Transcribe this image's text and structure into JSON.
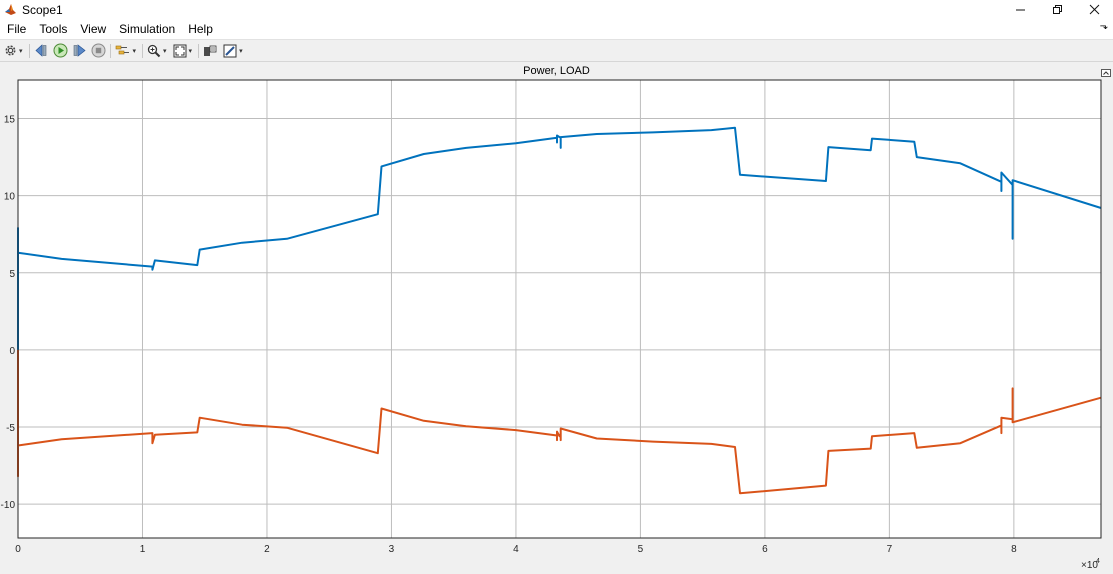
{
  "window": {
    "title": "Scope1",
    "icon": "matlab-icon",
    "controls": [
      "minimize-icon",
      "restore-icon",
      "close-icon"
    ]
  },
  "menu": {
    "items": [
      {
        "label": "File"
      },
      {
        "label": "Tools"
      },
      {
        "label": "View"
      },
      {
        "label": "Simulation"
      },
      {
        "label": "Help"
      }
    ],
    "collapse_icon": "chevron-icon"
  },
  "toolbar": {
    "icons": [
      "settings-icon",
      "step-back-icon",
      "run-icon",
      "step-forward-icon",
      "stop-icon",
      "highlight-icon",
      "zoom-icon",
      "autoscale-icon",
      "cursor-measure-icon",
      "style-icon"
    ]
  },
  "plot": {
    "title": "Power, LOAD",
    "x_exponent": "×10",
    "x_exponent_power": "4"
  },
  "colors": {
    "series1": "#0072BD",
    "series2": "#D95319",
    "grid": "#d9d9d9",
    "axes_bg": "#ffffff"
  },
  "chart_data": {
    "type": "line",
    "title": "Power, LOAD",
    "xlabel": "",
    "ylabel": "",
    "xlim": [
      0,
      8.7
    ],
    "ylim": [
      -12.2,
      17.5
    ],
    "x_scale_note": "×10^4",
    "x_ticks": [
      0,
      1,
      2,
      3,
      4,
      5,
      6,
      7,
      8
    ],
    "x_tick_labels": [
      "0",
      "1",
      "2",
      "3",
      "4",
      "5",
      "6",
      "7",
      "8"
    ],
    "y_ticks": [
      15,
      10,
      5,
      0,
      -5,
      -10
    ],
    "y_tick_labels": [
      "15",
      "10",
      "5",
      "0",
      "-5",
      "-10"
    ],
    "grid": true,
    "series": [
      {
        "x": [
          0,
          0,
          0,
          0.35,
          1.08,
          1.08,
          1.1,
          1.44,
          1.46,
          1.8,
          2.16,
          2.89,
          2.92,
          3.26,
          3.6,
          4.0,
          4.33,
          4.33,
          4.33,
          4.35,
          4.36,
          4.36,
          4.36,
          4.65,
          5.1,
          5.57,
          5.76,
          5.8,
          6.49,
          6.51,
          6.85,
          6.86,
          7.2,
          7.22,
          7.57,
          7.9,
          7.9,
          7.9,
          7.99,
          7.99,
          7.99,
          8.7
        ],
        "y": [
          0,
          7.9,
          6.3,
          5.9,
          5.4,
          5.2,
          5.8,
          5.5,
          6.5,
          6.95,
          7.2,
          8.8,
          11.9,
          12.7,
          13.1,
          13.4,
          13.75,
          13.45,
          13.9,
          13.8,
          13.8,
          13.1,
          13.8,
          14.0,
          14.1,
          14.25,
          14.4,
          11.35,
          10.95,
          13.15,
          12.95,
          13.7,
          13.5,
          12.5,
          12.1,
          10.9,
          10.3,
          11.5,
          10.7,
          7.2,
          11.0,
          9.2
        ]
      },
      {
        "x": [
          0,
          0,
          0,
          0.35,
          1.08,
          1.08,
          1.1,
          1.44,
          1.46,
          1.8,
          2.16,
          2.89,
          2.92,
          3.26,
          3.6,
          4.0,
          4.33,
          4.33,
          4.33,
          4.35,
          4.36,
          4.36,
          4.36,
          4.65,
          5.1,
          5.57,
          5.76,
          5.8,
          6.49,
          6.51,
          6.85,
          6.86,
          7.2,
          7.22,
          7.57,
          7.9,
          7.9,
          7.9,
          7.99,
          7.99,
          7.99,
          8.7
        ],
        "y": [
          0,
          -8.2,
          -6.2,
          -5.8,
          -5.4,
          -6.05,
          -5.5,
          -5.35,
          -4.4,
          -4.85,
          -5.05,
          -6.7,
          -3.8,
          -4.6,
          -4.95,
          -5.2,
          -5.55,
          -5.85,
          -5.3,
          -5.6,
          -5.45,
          -5.85,
          -5.1,
          -5.75,
          -5.95,
          -6.1,
          -6.3,
          -9.3,
          -8.8,
          -6.55,
          -6.4,
          -5.6,
          -5.4,
          -6.35,
          -6.05,
          -4.9,
          -5.4,
          -4.4,
          -4.5,
          -2.5,
          -4.7,
          -3.1
        ]
      }
    ]
  }
}
